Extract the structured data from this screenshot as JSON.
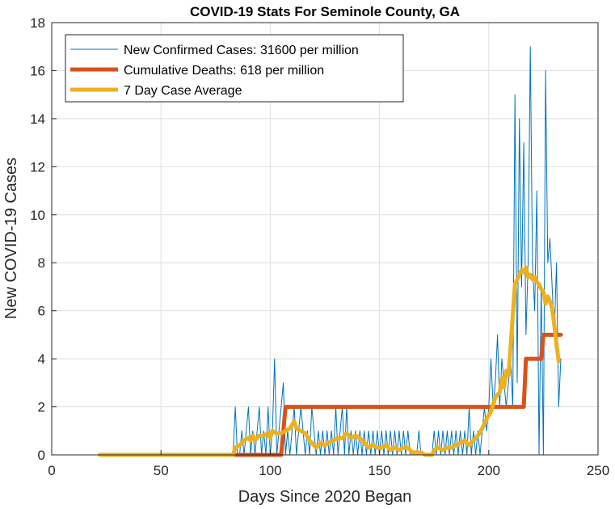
{
  "chart_data": {
    "type": "line",
    "title": "COVID-19 Stats For Seminole County, GA",
    "xlabel": "Days Since 2020 Began",
    "ylabel": "New COVID-19 Cases",
    "xlim": [
      0,
      250
    ],
    "ylim": [
      0,
      18
    ],
    "xticks": [
      0,
      50,
      100,
      150,
      200,
      250
    ],
    "yticks": [
      0,
      2,
      4,
      6,
      8,
      10,
      12,
      14,
      16,
      18
    ],
    "grid": true,
    "legend_position": "top-left",
    "series": [
      {
        "name": "New Confirmed Cases: 31600 per million",
        "color": "#0072BD",
        "line_width": 1,
        "points": [
          [
            22,
            0
          ],
          [
            82,
            0
          ],
          [
            83,
            0
          ],
          [
            84,
            2
          ],
          [
            85,
            0
          ],
          [
            86,
            0
          ],
          [
            87,
            1
          ],
          [
            88,
            0
          ],
          [
            89,
            1
          ],
          [
            90,
            2
          ],
          [
            91,
            0
          ],
          [
            92,
            1
          ],
          [
            93,
            0
          ],
          [
            94,
            1
          ],
          [
            95,
            2
          ],
          [
            96,
            0
          ],
          [
            97,
            1
          ],
          [
            98,
            0
          ],
          [
            99,
            2
          ],
          [
            100,
            0
          ],
          [
            101,
            1
          ],
          [
            102,
            4
          ],
          [
            103,
            0
          ],
          [
            104,
            1
          ],
          [
            105,
            2
          ],
          [
            106,
            3
          ],
          [
            107,
            0
          ],
          [
            108,
            1
          ],
          [
            109,
            0
          ],
          [
            110,
            1
          ],
          [
            111,
            2
          ],
          [
            112,
            0
          ],
          [
            113,
            1
          ],
          [
            114,
            2
          ],
          [
            115,
            1
          ],
          [
            116,
            0
          ],
          [
            117,
            1
          ],
          [
            118,
            0
          ],
          [
            119,
            2
          ],
          [
            120,
            1
          ],
          [
            121,
            0
          ],
          [
            122,
            1
          ],
          [
            123,
            0
          ],
          [
            124,
            1
          ],
          [
            125,
            0
          ],
          [
            126,
            1
          ],
          [
            127,
            0
          ],
          [
            128,
            1
          ],
          [
            129,
            0
          ],
          [
            130,
            2
          ],
          [
            131,
            0
          ],
          [
            132,
            1
          ],
          [
            133,
            2
          ],
          [
            134,
            0
          ],
          [
            135,
            2
          ],
          [
            136,
            0
          ],
          [
            137,
            1
          ],
          [
            138,
            0
          ],
          [
            139,
            1
          ],
          [
            140,
            0
          ],
          [
            141,
            1
          ],
          [
            142,
            0
          ],
          [
            143,
            1
          ],
          [
            144,
            0
          ],
          [
            145,
            1
          ],
          [
            146,
            0
          ],
          [
            147,
            1
          ],
          [
            148,
            0
          ],
          [
            149,
            1
          ],
          [
            150,
            0
          ],
          [
            151,
            1
          ],
          [
            152,
            0
          ],
          [
            153,
            1
          ],
          [
            154,
            0
          ],
          [
            155,
            1
          ],
          [
            156,
            0
          ],
          [
            157,
            1
          ],
          [
            158,
            0
          ],
          [
            159,
            1
          ],
          [
            160,
            0
          ],
          [
            161,
            1
          ],
          [
            162,
            0
          ],
          [
            163,
            1
          ],
          [
            164,
            0
          ],
          [
            165,
            0
          ],
          [
            166,
            0
          ],
          [
            167,
            0
          ],
          [
            168,
            1
          ],
          [
            169,
            0
          ],
          [
            170,
            0
          ],
          [
            171,
            0
          ],
          [
            172,
            0
          ],
          [
            173,
            0
          ],
          [
            174,
            0
          ],
          [
            175,
            1
          ],
          [
            176,
            0
          ],
          [
            177,
            1
          ],
          [
            178,
            0
          ],
          [
            179,
            1
          ],
          [
            180,
            0
          ],
          [
            181,
            1
          ],
          [
            182,
            0
          ],
          [
            183,
            1
          ],
          [
            184,
            0
          ],
          [
            185,
            1
          ],
          [
            186,
            0
          ],
          [
            187,
            1
          ],
          [
            188,
            0
          ],
          [
            189,
            1
          ],
          [
            190,
            0
          ],
          [
            191,
            2
          ],
          [
            192,
            0
          ],
          [
            193,
            1
          ],
          [
            194,
            0
          ],
          [
            195,
            1
          ],
          [
            196,
            0
          ],
          [
            197,
            1
          ],
          [
            198,
            2
          ],
          [
            199,
            1
          ],
          [
            200,
            2
          ],
          [
            201,
            4
          ],
          [
            202,
            2
          ],
          [
            203,
            3
          ],
          [
            204,
            5
          ],
          [
            205,
            2
          ],
          [
            206,
            4
          ],
          [
            207,
            3
          ],
          [
            208,
            2
          ],
          [
            209,
            3
          ],
          [
            210,
            4
          ],
          [
            211,
            2
          ],
          [
            212,
            15
          ],
          [
            213,
            3
          ],
          [
            214,
            14
          ],
          [
            215,
            7
          ],
          [
            216,
            13
          ],
          [
            217,
            5
          ],
          [
            218,
            8
          ],
          [
            219,
            17
          ],
          [
            220,
            8
          ],
          [
            221,
            6
          ],
          [
            222,
            11
          ],
          [
            223,
            0
          ],
          [
            224,
            7
          ],
          [
            225,
            0
          ],
          [
            226,
            16
          ],
          [
            227,
            8
          ],
          [
            228,
            9
          ],
          [
            229,
            7
          ],
          [
            230,
            5
          ],
          [
            231,
            8
          ],
          [
            232,
            2
          ],
          [
            233,
            4
          ]
        ]
      },
      {
        "name": "Cumulative Deaths: 618 per million",
        "color": "#D95319",
        "line_width": 5,
        "points": [
          [
            84,
            0
          ],
          [
            105,
            0
          ],
          [
            107,
            2
          ],
          [
            216,
            2
          ],
          [
            217,
            4
          ],
          [
            224,
            4
          ],
          [
            225,
            5
          ],
          [
            233,
            5
          ]
        ]
      },
      {
        "name": "7 Day Case Average",
        "color": "#EDB120",
        "line_width": 5,
        "points": [
          [
            22,
            0
          ],
          [
            83,
            0
          ],
          [
            84,
            0.3
          ],
          [
            86,
            0.4
          ],
          [
            88,
            0.6
          ],
          [
            90,
            0.7
          ],
          [
            91,
            0.6
          ],
          [
            92,
            0.8
          ],
          [
            93,
            0.6
          ],
          [
            95,
            0.8
          ],
          [
            97,
            0.8
          ],
          [
            99,
            0.9
          ],
          [
            100,
            0.7
          ],
          [
            101,
            1.0
          ],
          [
            103,
            0.9
          ],
          [
            105,
            0.9
          ],
          [
            107,
            1.0
          ],
          [
            109,
            1.1
          ],
          [
            111,
            1.4
          ],
          [
            112,
            1.1
          ],
          [
            114,
            1.0
          ],
          [
            116,
            0.9
          ],
          [
            118,
            0.6
          ],
          [
            120,
            0.4
          ],
          [
            121,
            0.3
          ],
          [
            123,
            0.5
          ],
          [
            125,
            0.4
          ],
          [
            127,
            0.5
          ],
          [
            129,
            0.6
          ],
          [
            131,
            0.7
          ],
          [
            133,
            0.7
          ],
          [
            135,
            0.9
          ],
          [
            137,
            0.7
          ],
          [
            139,
            0.8
          ],
          [
            141,
            0.7
          ],
          [
            143,
            0.5
          ],
          [
            145,
            0.3
          ],
          [
            147,
            0.4
          ],
          [
            149,
            0.3
          ],
          [
            151,
            0.3
          ],
          [
            153,
            0.4
          ],
          [
            155,
            0.2
          ],
          [
            157,
            0.3
          ],
          [
            159,
            0.2
          ],
          [
            161,
            0.3
          ],
          [
            163,
            0.3
          ],
          [
            165,
            0.1
          ],
          [
            167,
            0.1
          ],
          [
            169,
            0.1
          ],
          [
            171,
            0
          ],
          [
            174,
            0
          ],
          [
            175,
            0.2
          ],
          [
            177,
            0.3
          ],
          [
            179,
            0.2
          ],
          [
            181,
            0.3
          ],
          [
            183,
            0.3
          ],
          [
            185,
            0.4
          ],
          [
            187,
            0.5
          ],
          [
            189,
            0.6
          ],
          [
            191,
            0.4
          ],
          [
            193,
            0.6
          ],
          [
            195,
            0.8
          ],
          [
            197,
            1.1
          ],
          [
            199,
            1.5
          ],
          [
            201,
            1.8
          ],
          [
            203,
            2.4
          ],
          [
            205,
            2.6
          ],
          [
            206,
            3.2
          ],
          [
            207,
            2.8
          ],
          [
            208,
            3.5
          ],
          [
            209,
            3.3
          ],
          [
            210,
            4.5
          ],
          [
            211,
            5.8
          ],
          [
            212,
            7.1
          ],
          [
            213,
            7.3
          ],
          [
            214,
            7.5
          ],
          [
            215,
            7.7
          ],
          [
            216,
            7.6
          ],
          [
            217,
            7.8
          ],
          [
            218,
            7.4
          ],
          [
            219,
            7.5
          ],
          [
            220,
            7.3
          ],
          [
            221,
            7.4
          ],
          [
            222,
            7.2
          ],
          [
            223,
            7.1
          ],
          [
            224,
            6.9
          ],
          [
            225,
            6.8
          ],
          [
            226,
            6.3
          ],
          [
            227,
            6.6
          ],
          [
            228,
            6.4
          ],
          [
            229,
            6.1
          ],
          [
            230,
            5.4
          ],
          [
            231,
            4.6
          ],
          [
            232,
            3.9
          ]
        ]
      }
    ]
  }
}
